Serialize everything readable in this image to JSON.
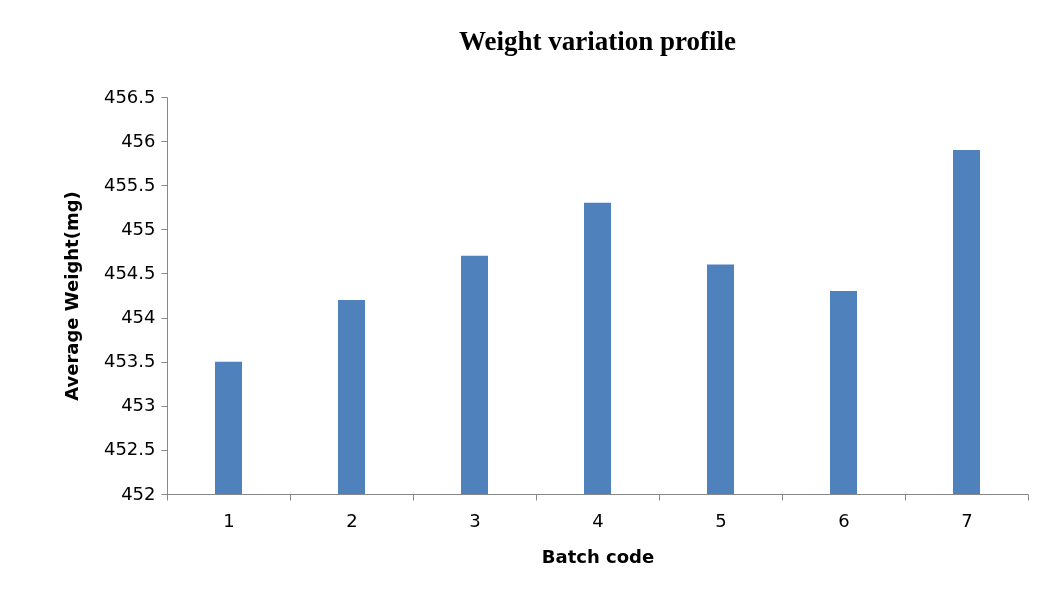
{
  "chart_data": {
    "type": "bar",
    "title": "Weight variation profile",
    "xlabel": "Batch code",
    "ylabel": "Average Weight(mg)",
    "categories": [
      "1",
      "2",
      "3",
      "4",
      "5",
      "6",
      "7"
    ],
    "values": [
      453.5,
      454.2,
      454.7,
      455.3,
      454.6,
      454.3,
      455.9
    ],
    "color": "#4f81bd",
    "ylim": [
      452,
      456.5
    ],
    "yticks": [
      452,
      452.5,
      453,
      453.5,
      454,
      454.5,
      455,
      455.5,
      456,
      456.5
    ],
    "grid": false
  }
}
